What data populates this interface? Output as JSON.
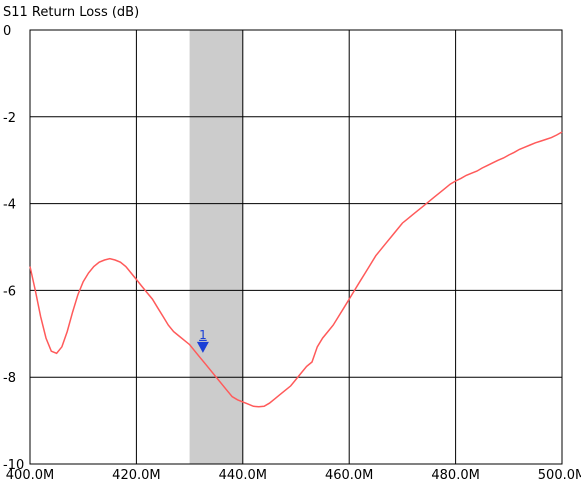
{
  "chart_data": {
    "type": "line",
    "title": "S11 Return Loss (dB)",
    "xlabel": "",
    "ylabel": "",
    "xlim": [
      400,
      500
    ],
    "ylim": [
      -10,
      0
    ],
    "x_ticks": [
      400,
      420,
      440,
      460,
      480,
      500
    ],
    "x_tick_labels": [
      "400.0M",
      "420.0M",
      "440.0M",
      "460.0M",
      "480.0M",
      "500.0M"
    ],
    "y_ticks": [
      0,
      -2,
      -4,
      -6,
      -8,
      -10
    ],
    "y_tick_labels": [
      "0",
      "-2",
      "-4",
      "-6",
      "-8",
      "-10"
    ],
    "grid": true,
    "band": {
      "x_start": 430,
      "x_end": 440,
      "color": "#cccccc"
    },
    "series": [
      {
        "color": "#ff5a5a",
        "x": [
          400,
          401,
          402,
          403,
          404,
          405,
          406,
          407,
          408,
          409,
          410,
          411,
          412,
          413,
          414,
          415,
          416,
          417,
          418,
          419,
          420,
          421,
          422,
          423,
          424,
          425,
          426,
          427,
          428,
          429,
          430,
          431,
          432,
          433,
          434,
          435,
          436,
          437,
          438,
          439,
          440,
          441,
          442,
          443,
          444,
          445,
          446,
          447,
          448,
          449,
          450,
          451,
          452,
          453,
          454,
          455,
          456,
          457,
          458,
          459,
          460,
          461,
          462,
          463,
          464,
          465,
          466,
          467,
          468,
          469,
          470,
          471,
          472,
          473,
          474,
          475,
          476,
          477,
          478,
          479,
          480,
          481,
          482,
          483,
          484,
          485,
          486,
          487,
          488,
          489,
          490,
          491,
          492,
          493,
          494,
          495,
          496,
          497,
          498,
          499,
          500
        ],
        "y": [
          -5.45,
          -6.0,
          -6.6,
          -7.1,
          -7.4,
          -7.45,
          -7.3,
          -6.95,
          -6.5,
          -6.1,
          -5.8,
          -5.6,
          -5.45,
          -5.35,
          -5.3,
          -5.27,
          -5.3,
          -5.35,
          -5.45,
          -5.6,
          -5.75,
          -5.9,
          -6.05,
          -6.2,
          -6.4,
          -6.6,
          -6.8,
          -6.95,
          -7.05,
          -7.15,
          -7.25,
          -7.4,
          -7.55,
          -7.7,
          -7.85,
          -8.0,
          -8.15,
          -8.3,
          -8.45,
          -8.52,
          -8.57,
          -8.62,
          -8.67,
          -8.68,
          -8.67,
          -8.6,
          -8.5,
          -8.4,
          -8.3,
          -8.2,
          -8.05,
          -7.9,
          -7.75,
          -7.65,
          -7.3,
          -7.1,
          -6.95,
          -6.8,
          -6.6,
          -6.4,
          -6.2,
          -6.0,
          -5.8,
          -5.6,
          -5.4,
          -5.2,
          -5.05,
          -4.9,
          -4.75,
          -4.6,
          -4.45,
          -4.35,
          -4.25,
          -4.15,
          -4.05,
          -3.95,
          -3.85,
          -3.75,
          -3.65,
          -3.55,
          -3.48,
          -3.42,
          -3.35,
          -3.3,
          -3.25,
          -3.18,
          -3.12,
          -3.06,
          -3.0,
          -2.95,
          -2.88,
          -2.82,
          -2.75,
          -2.7,
          -2.65,
          -2.6,
          -2.56,
          -2.52,
          -2.48,
          -2.42,
          -2.35
        ]
      }
    ],
    "markers": [
      {
        "label": "1",
        "x": 432.5,
        "y": -7.3,
        "color": "#1a3fd6"
      }
    ]
  }
}
